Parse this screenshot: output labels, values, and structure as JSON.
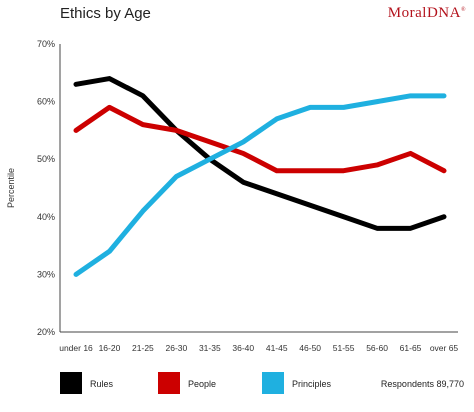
{
  "title": "Ethics by Age",
  "brand": {
    "name": "MoralDNA",
    "mark": "®",
    "color": "#b3121c"
  },
  "chart_data": {
    "type": "line",
    "title": "Ethics by Age",
    "xlabel": "",
    "ylabel": "Percentile",
    "categories": [
      "under 16",
      "16-20",
      "21-25",
      "26-30",
      "31-35",
      "36-40",
      "41-45",
      "46-50",
      "51-55",
      "56-60",
      "61-65",
      "over 65"
    ],
    "ylim": [
      20,
      70
    ],
    "yticks": [
      "70%",
      "60%",
      "50%",
      "40%",
      "30%",
      "20%"
    ],
    "ytick_values": [
      70,
      60,
      50,
      40,
      30,
      20
    ],
    "grid": false,
    "legend": "bottom",
    "series": [
      {
        "name": "Rules",
        "color": "#000000",
        "values": [
          63,
          64,
          61,
          55,
          50,
          46,
          44,
          42,
          40,
          38,
          38,
          40
        ]
      },
      {
        "name": "People",
        "color": "#cc0000",
        "values": [
          55,
          59,
          56,
          55,
          53,
          51,
          48,
          48,
          48,
          49,
          51,
          48
        ]
      },
      {
        "name": "Principles",
        "color": "#1fb0e0",
        "values": [
          30,
          34,
          41,
          47,
          50,
          53,
          57,
          59,
          59,
          60,
          61,
          61
        ]
      }
    ],
    "footnote": "Respondents 89,770"
  }
}
